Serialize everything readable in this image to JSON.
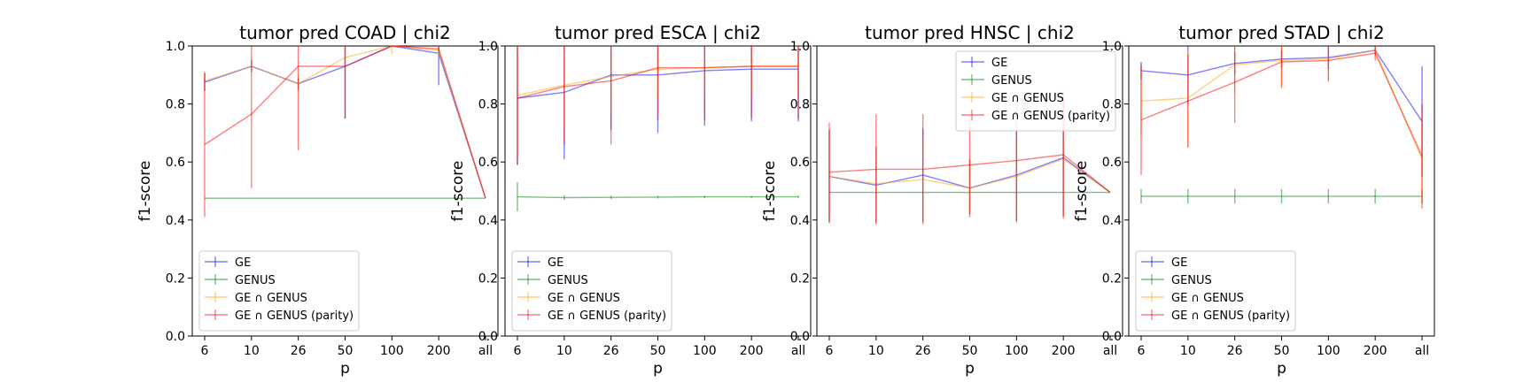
{
  "chart_data": [
    {
      "type": "line",
      "title": "tumor pred COAD | chi2",
      "xlabel": "p",
      "ylabel": "f1-score",
      "ylim": [
        0.0,
        1.0
      ],
      "yticks": [
        "0.0",
        "0.2",
        "0.4",
        "0.6",
        "0.8",
        "1.0"
      ],
      "categories": [
        "6",
        "10",
        "26",
        "50",
        "100",
        "200",
        "all"
      ],
      "legend": "lower-left",
      "series": [
        {
          "name": "GE",
          "color": "#0000ff",
          "values": [
            0.875,
            0.93,
            0.87,
            0.93,
            1.0,
            0.975,
            0.475
          ],
          "err": [
            0.03,
            0.02,
            0.02,
            0.18,
            0.0,
            0.11,
            0.0
          ]
        },
        {
          "name": "GENUS",
          "color": "#008000",
          "values": [
            0.475,
            0.475,
            0.475,
            0.475,
            0.475,
            0.475,
            0.475
          ],
          "err": [
            0,
            0,
            0,
            0,
            0,
            0,
            0
          ]
        },
        {
          "name": "GE ∩ GENUS",
          "color": "#ffa500",
          "values": [
            0.88,
            0.93,
            0.87,
            0.96,
            1.0,
            0.985,
            0.475
          ],
          "err": [
            0.03,
            0.02,
            0.03,
            0.04,
            0.03,
            0.02,
            0.0
          ]
        },
        {
          "name": "GE ∩ GENUS (parity)",
          "color": "#ff0000",
          "values": [
            0.66,
            0.765,
            0.93,
            0.93,
            1.0,
            0.99,
            0.475
          ],
          "err": [
            0.25,
            0.255,
            0.29,
            0.18,
            0.0,
            0.01,
            0.0
          ]
        }
      ]
    },
    {
      "type": "line",
      "title": "tumor pred ESCA | chi2",
      "xlabel": "p",
      "ylabel": "f1-score",
      "ylim": [
        0.0,
        1.0
      ],
      "yticks": [
        "0.0",
        "0.2",
        "0.4",
        "0.6",
        "0.8",
        "1.0"
      ],
      "categories": [
        "6",
        "10",
        "26",
        "50",
        "100",
        "200",
        "all"
      ],
      "legend": "lower-left",
      "series": [
        {
          "name": "GE",
          "color": "#0000ff",
          "values": [
            0.82,
            0.84,
            0.9,
            0.9,
            0.915,
            0.92,
            0.92
          ],
          "err": [
            0.23,
            0.23,
            0.19,
            0.2,
            0.19,
            0.18,
            0.18
          ]
        },
        {
          "name": "GENUS",
          "color": "#008000",
          "values": [
            0.48,
            0.477,
            0.478,
            0.479,
            0.48,
            0.48,
            0.48
          ],
          "err": [
            0.05,
            0.008,
            0.006,
            0.005,
            0.004,
            0.004,
            0.004
          ]
        },
        {
          "name": "GE ∩ GENUS",
          "color": "#ffa500",
          "values": [
            0.83,
            0.865,
            0.895,
            0.92,
            0.925,
            0.93,
            0.93
          ],
          "err": [
            0.2,
            0.15,
            0.12,
            0.1,
            0.1,
            0.1,
            0.1
          ]
        },
        {
          "name": "GE ∩ GENUS (parity)",
          "color": "#ff0000",
          "values": [
            0.82,
            0.86,
            0.88,
            0.925,
            0.925,
            0.93,
            0.93
          ],
          "err": [
            0.23,
            0.2,
            0.22,
            0.18,
            0.18,
            0.18,
            0.18
          ]
        }
      ]
    },
    {
      "type": "line",
      "title": "tumor pred HNSC | chi2",
      "xlabel": "p",
      "ylabel": "f1-score",
      "ylim": [
        0.0,
        1.0
      ],
      "yticks": [
        "0.0",
        "0.2",
        "0.4",
        "0.6",
        "0.8",
        "1.0"
      ],
      "categories": [
        "6",
        "10",
        "26",
        "50",
        "100",
        "200",
        "all"
      ],
      "legend": "upper-right",
      "series": [
        {
          "name": "GE",
          "color": "#0000ff",
          "values": [
            0.55,
            0.52,
            0.555,
            0.51,
            0.555,
            0.615,
            0.495
          ],
          "err": [
            0.16,
            0.13,
            0.16,
            0.1,
            0.16,
            0.2,
            0.0
          ]
        },
        {
          "name": "GENUS",
          "color": "#008000",
          "values": [
            0.495,
            0.495,
            0.495,
            0.495,
            0.495,
            0.495,
            0.495
          ],
          "err": [
            0,
            0,
            0,
            0,
            0,
            0,
            0
          ]
        },
        {
          "name": "GE ∩ GENUS",
          "color": "#ffa500",
          "values": [
            0.55,
            0.525,
            0.54,
            0.51,
            0.55,
            0.61,
            0.495
          ],
          "err": [
            0.16,
            0.13,
            0.15,
            0.1,
            0.16,
            0.2,
            0.0
          ]
        },
        {
          "name": "GE ∩ GENUS (parity)",
          "color": "#ff0000",
          "values": [
            0.565,
            0.575,
            0.575,
            0.59,
            0.605,
            0.625,
            0.495
          ],
          "err": [
            0.17,
            0.19,
            0.19,
            0.17,
            0.21,
            0.22,
            0.0
          ]
        }
      ]
    },
    {
      "type": "line",
      "title": "tumor pred STAD | chi2",
      "xlabel": "p",
      "ylabel": "f1-score",
      "ylim": [
        0.0,
        1.0
      ],
      "yticks": [
        "0.0",
        "0.2",
        "0.4",
        "0.6",
        "0.8",
        "1.0"
      ],
      "categories": [
        "6",
        "10",
        "26",
        "50",
        "100",
        "200",
        "all"
      ],
      "legend": "lower-left",
      "series": [
        {
          "name": "GE",
          "color": "#0000ff",
          "values": [
            0.915,
            0.9,
            0.94,
            0.955,
            0.96,
            0.985,
            0.74
          ],
          "err": [
            0.03,
            0.1,
            0.04,
            0.03,
            0.04,
            0.015,
            0.19
          ]
        },
        {
          "name": "GENUS",
          "color": "#008000",
          "values": [
            0.482,
            0.482,
            0.482,
            0.482,
            0.482,
            0.482,
            0.482
          ],
          "err": [
            0.025,
            0.025,
            0.025,
            0.025,
            0.025,
            0.025,
            0.025
          ]
        },
        {
          "name": "GE ∩ GENUS",
          "color": "#ffa500",
          "values": [
            0.81,
            0.82,
            0.935,
            0.95,
            0.955,
            0.985,
            0.61
          ],
          "err": [
            0.12,
            0.17,
            0.1,
            0.09,
            0.08,
            0.02,
            0.15
          ]
        },
        {
          "name": "GE ∩ GENUS (parity)",
          "color": "#ff0000",
          "values": [
            0.745,
            0.81,
            0.875,
            0.945,
            0.95,
            0.975,
            0.62
          ],
          "err": [
            0.19,
            0.16,
            0.14,
            0.09,
            0.07,
            0.025,
            0.18
          ]
        }
      ]
    }
  ]
}
